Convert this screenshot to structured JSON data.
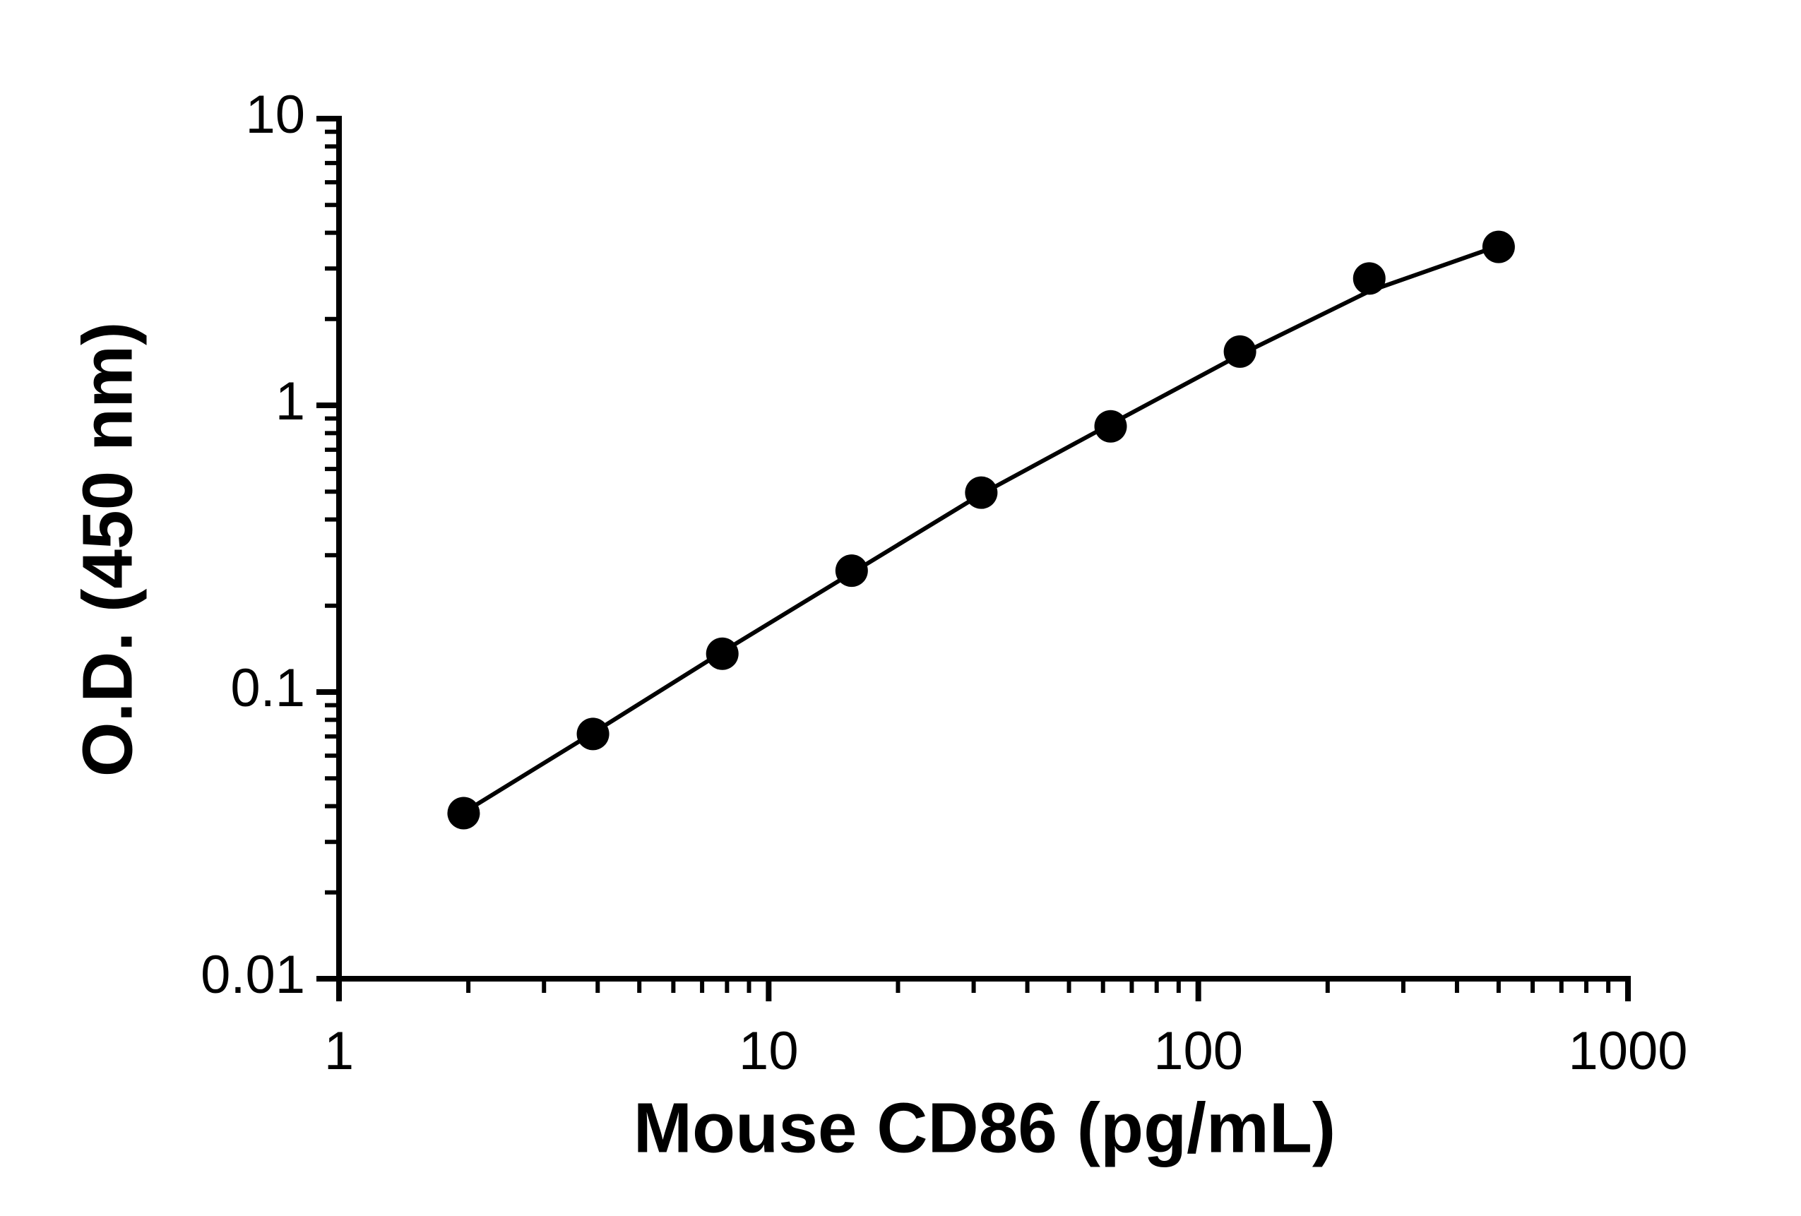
{
  "chart_data": {
    "type": "scatter",
    "x_label": "Mouse CD86 (pg/mL)",
    "y_label": "O.D. (450 nm)",
    "xscale": "log",
    "yscale": "log",
    "xlim": [
      1,
      1000
    ],
    "ylim": [
      0.01,
      10
    ],
    "xticks": [
      1,
      10,
      100,
      1000
    ],
    "yticks": [
      0.01,
      0.1,
      1,
      10
    ],
    "xminorticks": [
      2,
      3,
      4,
      5,
      6,
      7,
      8,
      9,
      20,
      30,
      40,
      50,
      60,
      70,
      80,
      90,
      200,
      300,
      400,
      500,
      600,
      700,
      800,
      900
    ],
    "yminorticks": [
      0.02,
      0.03,
      0.04,
      0.05,
      0.06,
      0.07,
      0.08,
      0.09,
      0.2,
      0.3,
      0.4,
      0.5,
      0.6,
      0.7,
      0.8,
      0.9,
      2,
      3,
      4,
      5,
      6,
      7,
      8,
      9
    ],
    "series": [
      {
        "mark": "circle",
        "color": "#000000",
        "x": [
          1.95,
          3.9,
          7.8,
          15.6,
          31.25,
          62.5,
          125,
          250,
          500
        ],
        "values": [
          0.0378,
          0.0714,
          0.136,
          0.265,
          0.496,
          0.845,
          1.54,
          2.77,
          3.57
        ]
      },
      {
        "mark": "line",
        "color": "#000000",
        "x": [
          1.95,
          3.9,
          7.8,
          15.6,
          31.25,
          62.5,
          125,
          250,
          500
        ],
        "values": [
          0.038,
          0.072,
          0.138,
          0.26,
          0.49,
          0.86,
          1.5,
          2.5,
          3.6
        ]
      }
    ]
  }
}
